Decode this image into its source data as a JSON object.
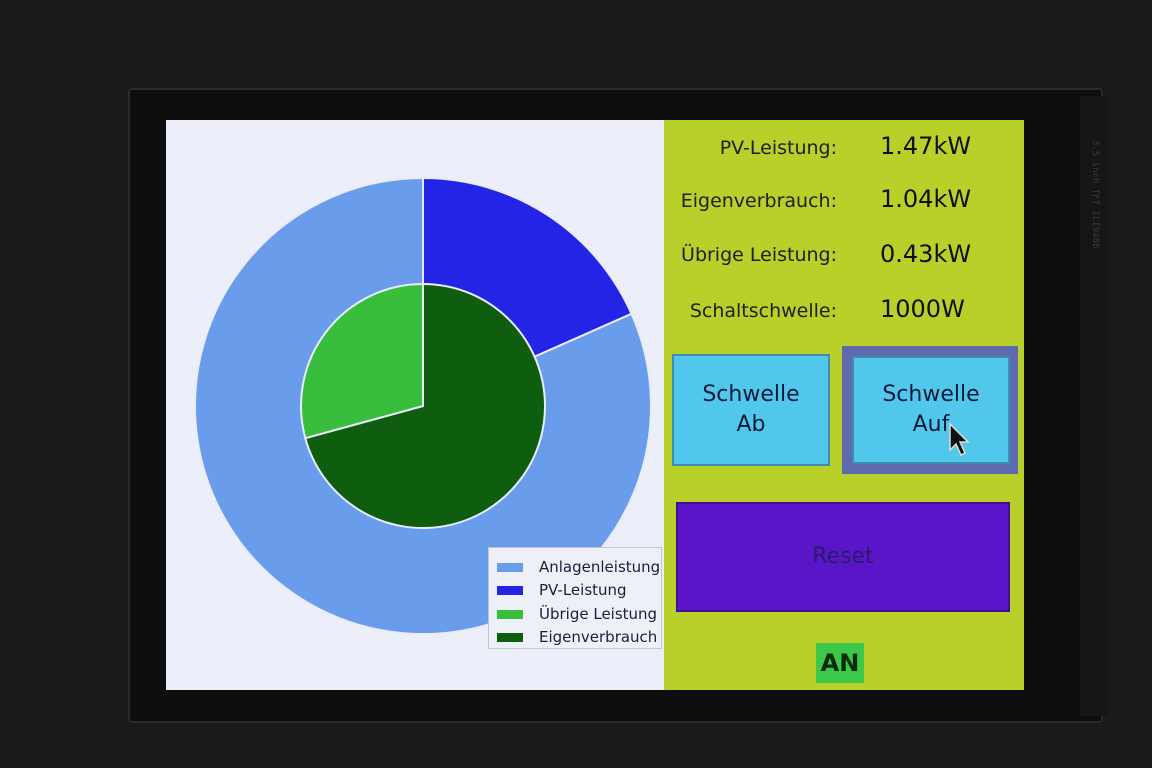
{
  "chart_data": {
    "type": "pie",
    "title": "",
    "outer_ring": [
      {
        "label": "PV-Leistung",
        "value": 1.47,
        "color": "#2424e6"
      },
      {
        "label": "Anlagenleistung",
        "value": 6.53,
        "color": "#6a9cec"
      }
    ],
    "inner_ring": [
      {
        "label": "Eigenverbrauch",
        "value": 1.04,
        "color": "#0f5e10"
      },
      {
        "label": "Übrige Leistung",
        "value": 0.43,
        "color": "#38be3c"
      }
    ],
    "legend": [
      {
        "label": "Anlagenleistung",
        "color": "#6a9cec"
      },
      {
        "label": "PV-Leistung",
        "color": "#2424e6"
      },
      {
        "label": "Übrige Leistung",
        "color": "#38be3c"
      },
      {
        "label": "Eigenverbrauch",
        "color": "#0f5e10"
      }
    ],
    "legend_position": "bottom-right"
  },
  "stats": [
    {
      "label": "PV-Leistung:",
      "value": "1.47kW"
    },
    {
      "label": "Eigenverbrauch:",
      "value": "1.04kW"
    },
    {
      "label": "Übrige Leistung:",
      "value": "0.43kW"
    },
    {
      "label": "Schaltschwelle:",
      "value": "1000W"
    }
  ],
  "buttons": {
    "schwelle_ab": "Schwelle\nAb",
    "schwelle_auf": "Schwelle\nAuf",
    "reset": "Reset"
  },
  "status": {
    "label": "AN",
    "color": "#3cc94a"
  },
  "bezel_text": "3.5 inch   TFT   ILI9488",
  "colors": {
    "panel": "#b8d029",
    "button": "#52c7ec",
    "reset": "#5a15c8"
  }
}
